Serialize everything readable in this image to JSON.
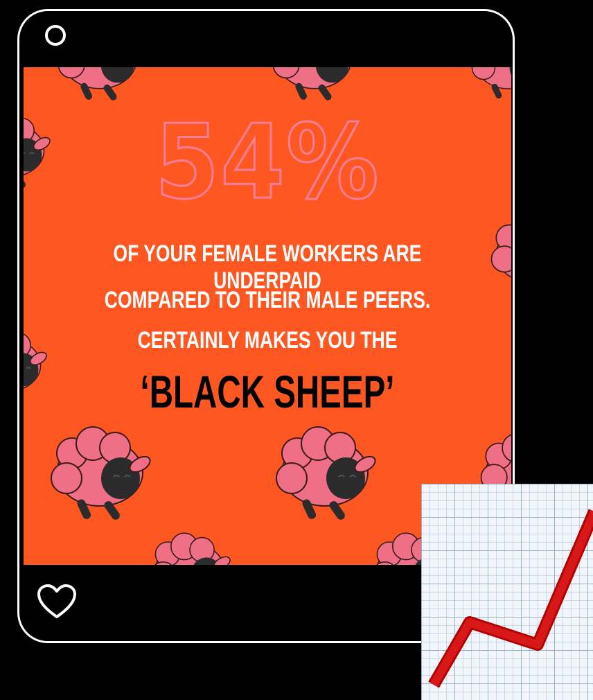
{
  "post": {
    "stat": "54%",
    "line1": "Of your female workers are underpaid",
    "line2": "compared to their male peers.",
    "line3": "Certainly makes you the",
    "highlight": "‘Black Sheep’"
  },
  "icons": {
    "top": "circle-icon",
    "like": "heart-icon",
    "overlay": "chart-increasing-icon"
  },
  "colors": {
    "background": "#000000",
    "post_background": "#ff5722",
    "sheep": "#ef6f86",
    "stat": "#f8809a",
    "trend_line": "#cc0000"
  }
}
